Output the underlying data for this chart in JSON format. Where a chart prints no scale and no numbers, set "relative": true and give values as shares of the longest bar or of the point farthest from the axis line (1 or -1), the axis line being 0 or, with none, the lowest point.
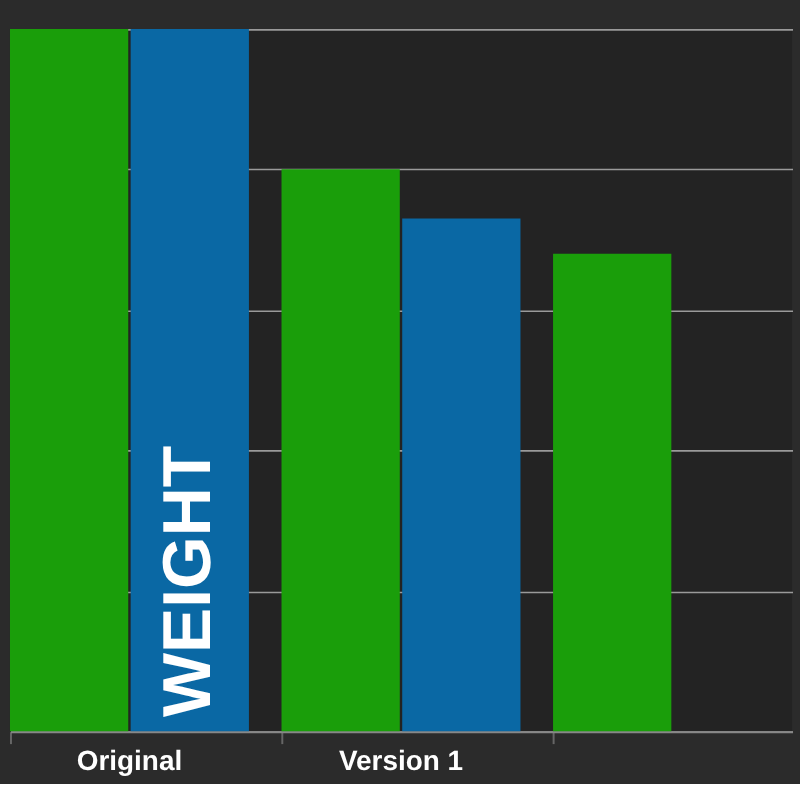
{
  "chart_data": {
    "type": "bar",
    "relative": true,
    "grid": "y",
    "categories": [
      "Original",
      "Version 1",
      null
    ],
    "series": [
      {
        "color": "#1a9e0a",
        "values": [
          1,
          0.8,
          0.68
        ]
      },
      {
        "color": "#0a68a4",
        "values": [
          1,
          0.73,
          null
        ]
      }
    ],
    "annotations": [
      "WEIGHT"
    ]
  }
}
